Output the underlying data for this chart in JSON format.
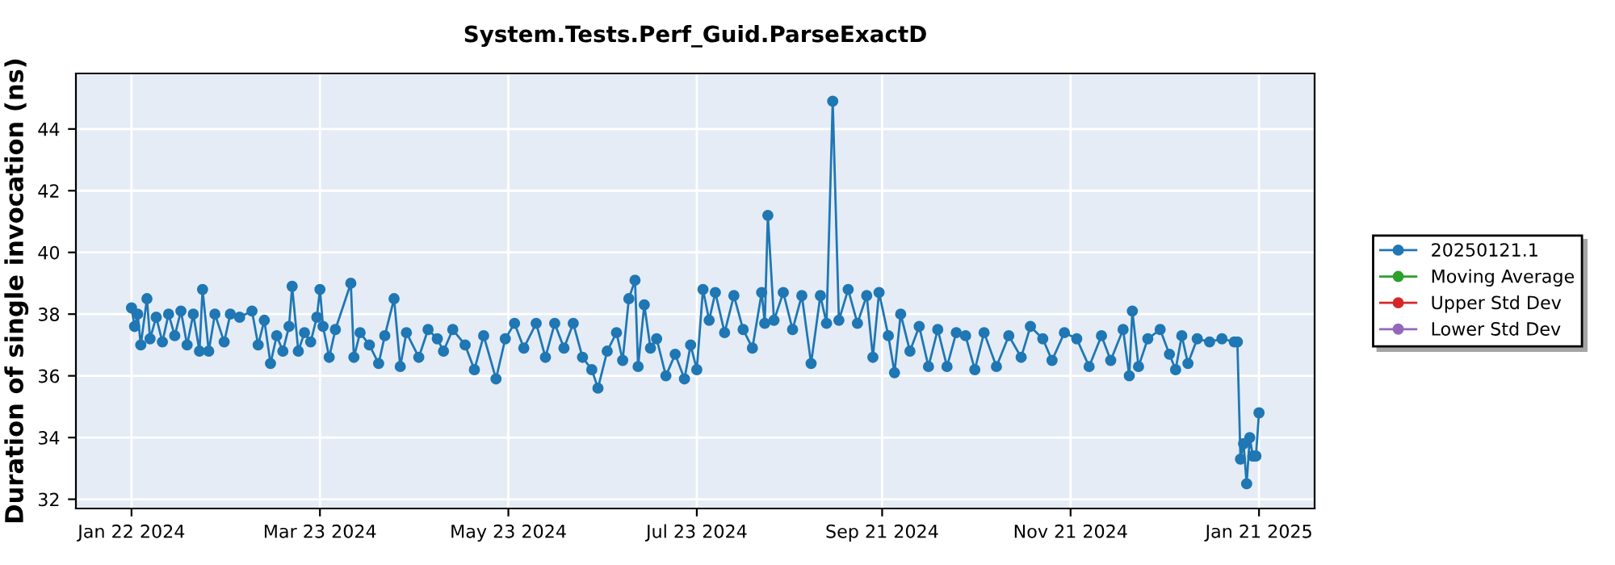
{
  "chart_data": {
    "type": "line",
    "title": "System.Tests.Perf_Guid.ParseExactD",
    "ylabel": "Duration of single invocation (ns)",
    "xlim": [
      "2024-01-04",
      "2025-02-08"
    ],
    "ylim": [
      31.7,
      45.8
    ],
    "xticks": [
      {
        "value": "2024-01-22",
        "label": "Jan 22 2024"
      },
      {
        "value": "2024-03-23",
        "label": "Mar 23 2024"
      },
      {
        "value": "2024-05-23",
        "label": "May 23 2024"
      },
      {
        "value": "2024-07-23",
        "label": "Jul 23 2024"
      },
      {
        "value": "2024-09-21",
        "label": "Sep 21 2024"
      },
      {
        "value": "2024-11-21",
        "label": "Nov 21 2024"
      },
      {
        "value": "2025-01-21",
        "label": "Jan 21 2025"
      }
    ],
    "yticks": [
      32,
      34,
      36,
      38,
      40,
      42,
      44
    ],
    "grid": true,
    "legend": "right",
    "marker": "circle",
    "line_style": "solid",
    "series": [
      {
        "name": "20250121.1",
        "color": "#1f77b4",
        "x": [
          "2024-01-22",
          "2024-01-23",
          "2024-01-24",
          "2024-01-25",
          "2024-01-27",
          "2024-01-28",
          "2024-01-30",
          "2024-02-01",
          "2024-02-03",
          "2024-02-05",
          "2024-02-07",
          "2024-02-09",
          "2024-02-11",
          "2024-02-13",
          "2024-02-14",
          "2024-02-16",
          "2024-02-18",
          "2024-02-21",
          "2024-02-23",
          "2024-02-26",
          "2024-03-01",
          "2024-03-03",
          "2024-03-05",
          "2024-03-07",
          "2024-03-09",
          "2024-03-11",
          "2024-03-13",
          "2024-03-14",
          "2024-03-16",
          "2024-03-18",
          "2024-03-20",
          "2024-03-22",
          "2024-03-23",
          "2024-03-24",
          "2024-03-26",
          "2024-03-28",
          "2024-04-02",
          "2024-04-03",
          "2024-04-05",
          "2024-04-08",
          "2024-04-11",
          "2024-04-13",
          "2024-04-16",
          "2024-04-18",
          "2024-04-20",
          "2024-04-24",
          "2024-04-27",
          "2024-04-30",
          "2024-05-02",
          "2024-05-05",
          "2024-05-09",
          "2024-05-12",
          "2024-05-15",
          "2024-05-19",
          "2024-05-22",
          "2024-05-25",
          "2024-05-28",
          "2024-06-01",
          "2024-06-04",
          "2024-06-07",
          "2024-06-10",
          "2024-06-13",
          "2024-06-16",
          "2024-06-19",
          "2024-06-21",
          "2024-06-24",
          "2024-06-27",
          "2024-06-29",
          "2024-07-01",
          "2024-07-03",
          "2024-07-04",
          "2024-07-06",
          "2024-07-08",
          "2024-07-10",
          "2024-07-13",
          "2024-07-16",
          "2024-07-19",
          "2024-07-21",
          "2024-07-23",
          "2024-07-25",
          "2024-07-27",
          "2024-07-29",
          "2024-08-01",
          "2024-08-04",
          "2024-08-07",
          "2024-08-10",
          "2024-08-13",
          "2024-08-14",
          "2024-08-15",
          "2024-08-17",
          "2024-08-20",
          "2024-08-23",
          "2024-08-26",
          "2024-08-29",
          "2024-09-01",
          "2024-09-03",
          "2024-09-05",
          "2024-09-07",
          "2024-09-10",
          "2024-09-13",
          "2024-09-16",
          "2024-09-18",
          "2024-09-20",
          "2024-09-23",
          "2024-09-25",
          "2024-09-27",
          "2024-09-30",
          "2024-10-03",
          "2024-10-06",
          "2024-10-09",
          "2024-10-12",
          "2024-10-15",
          "2024-10-18",
          "2024-10-21",
          "2024-10-24",
          "2024-10-28",
          "2024-11-01",
          "2024-11-05",
          "2024-11-08",
          "2024-11-12",
          "2024-11-15",
          "2024-11-19",
          "2024-11-23",
          "2024-11-27",
          "2024-12-01",
          "2024-12-04",
          "2024-12-08",
          "2024-12-10",
          "2024-12-11",
          "2024-12-13",
          "2024-12-16",
          "2024-12-20",
          "2024-12-23",
          "2024-12-25",
          "2024-12-27",
          "2024-12-29",
          "2025-01-01",
          "2025-01-05",
          "2025-01-09",
          "2025-01-13",
          "2025-01-14",
          "2025-01-15",
          "2025-01-16",
          "2025-01-17",
          "2025-01-18",
          "2025-01-19",
          "2025-01-20",
          "2025-01-21"
        ],
        "values": [
          38.2,
          37.6,
          38.0,
          37.0,
          38.5,
          37.2,
          37.9,
          37.1,
          38.0,
          37.3,
          38.1,
          37.0,
          38.0,
          36.8,
          38.8,
          36.8,
          38.0,
          37.1,
          38.0,
          37.9,
          38.1,
          37.0,
          37.8,
          36.4,
          37.3,
          36.8,
          37.6,
          38.9,
          36.8,
          37.4,
          37.1,
          37.9,
          38.8,
          37.6,
          36.6,
          37.5,
          39.0,
          36.6,
          37.4,
          37.0,
          36.4,
          37.3,
          38.5,
          36.3,
          37.4,
          36.6,
          37.5,
          37.2,
          36.8,
          37.5,
          37.0,
          36.2,
          37.3,
          35.9,
          37.2,
          37.7,
          36.9,
          37.7,
          36.6,
          37.7,
          36.9,
          37.7,
          36.6,
          36.2,
          35.6,
          36.8,
          37.4,
          36.5,
          38.5,
          39.1,
          36.3,
          38.3,
          36.9,
          37.2,
          36.0,
          36.7,
          35.9,
          37.0,
          36.2,
          38.8,
          37.8,
          38.7,
          37.4,
          38.6,
          37.5,
          36.9,
          38.7,
          37.7,
          41.2,
          37.8,
          38.7,
          37.5,
          38.6,
          36.4,
          38.6,
          37.7,
          44.9,
          37.8,
          38.8,
          37.7,
          38.6,
          36.6,
          38.7,
          37.3,
          36.1,
          38.0,
          36.8,
          37.6,
          36.3,
          37.5,
          36.3,
          37.4,
          37.3,
          36.2,
          37.4,
          36.3,
          37.3,
          36.6,
          37.6,
          37.2,
          36.5,
          37.4,
          37.2,
          36.3,
          37.3,
          36.5,
          37.5,
          36.0,
          38.1,
          36.3,
          37.2,
          37.5,
          36.7,
          36.2,
          37.3,
          36.4,
          37.2,
          37.1,
          37.2,
          37.1,
          37.1,
          33.3,
          33.8,
          32.5,
          34.0,
          33.4,
          33.4,
          34.8
        ]
      },
      {
        "name": "Moving Average",
        "color": "#2ca02c"
      },
      {
        "name": "Upper Std Dev",
        "color": "#d62728"
      },
      {
        "name": "Lower Std Dev",
        "color": "#9467bd"
      }
    ]
  }
}
